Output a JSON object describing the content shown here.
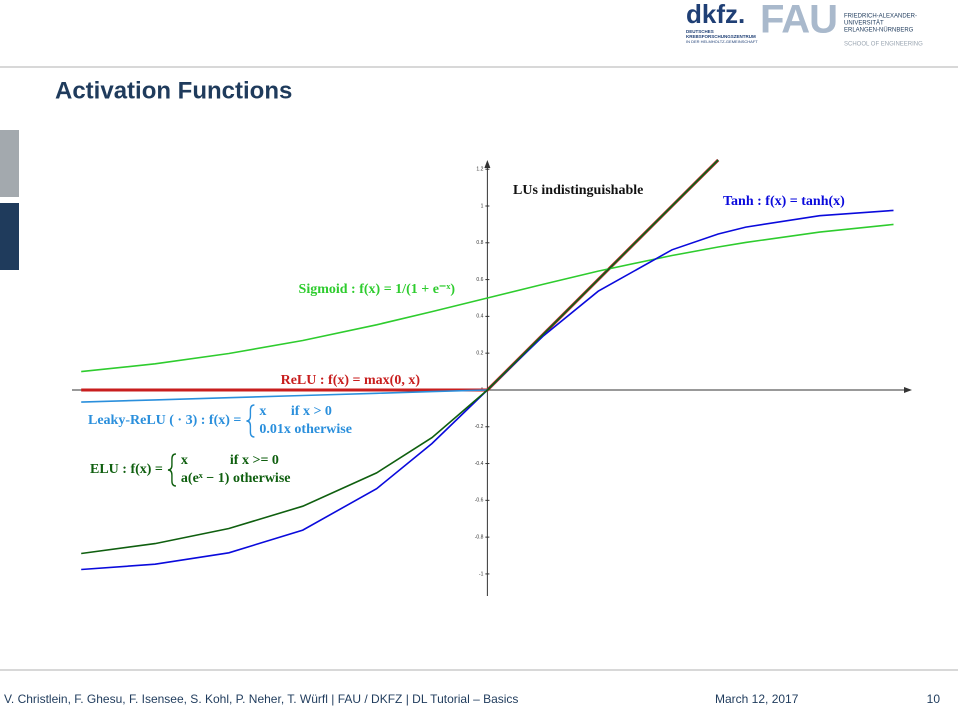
{
  "header": {
    "dkfz": "dkfz.",
    "dkfz_sub": [
      "DEUTSCHES",
      "KREBSFORSCHUNGSZENTRUM",
      "IN DER HELMHOLTZ-GEMEINSCHAFT"
    ],
    "fau": "FAU",
    "fau_sub": [
      "FRIEDRICH-ALEXANDER-",
      "UNIVERSITÄT",
      "ERLANGEN-NÜRNBERG"
    ],
    "school": "SCHOOL OF ENGINEERING"
  },
  "title": "Activation Functions",
  "footer": {
    "authors": "V. Christlein, F. Ghesu, F. Isensee, S. Kohl, P. Neher, T. Würfl   |   FAU / DKFZ   |   DL Tutorial – Basics",
    "date": "March 12, 2017",
    "page": "10"
  },
  "chart_data": {
    "type": "line",
    "x": [
      -2.2,
      -1.8,
      -1.4,
      -1.0,
      -0.6,
      -0.3,
      0,
      0.3,
      0.6,
      1.0,
      1.25,
      1.4,
      1.8,
      2.2
    ],
    "xlim": [
      -2.25,
      2.3
    ],
    "ylim": [
      -1.12,
      1.25
    ],
    "yticks": [
      -1,
      -0.8,
      -0.6,
      -0.4,
      -0.2,
      0,
      0.2,
      0.4,
      0.6,
      0.8,
      1,
      1.2
    ],
    "annotation": "LUs indistinguishable",
    "series": [
      {
        "name": "Sigmoid",
        "color": "#2ecc2e",
        "label": "Sigmoid :  f(x) = 1/(1 + e⁻ˣ)",
        "values": [
          0.1,
          0.142,
          0.198,
          0.269,
          0.354,
          0.426,
          0.5,
          0.574,
          0.646,
          0.731,
          0.777,
          0.802,
          0.858,
          0.9
        ]
      },
      {
        "name": "Tanh",
        "color": "#0a0adc",
        "label": "Tanh :  f(x) = tanh(x)",
        "values": [
          -0.976,
          -0.947,
          -0.885,
          -0.762,
          -0.537,
          -0.291,
          0,
          0.291,
          0.537,
          0.762,
          0.848,
          0.885,
          0.947,
          0.976
        ]
      },
      {
        "name": "ReLU",
        "color": "#c81e1e",
        "label": "ReLU :  f(x) = max(0, x)",
        "values": [
          0,
          0,
          0,
          0,
          0,
          0,
          0,
          0.3,
          0.6,
          1.0,
          1.25,
          null,
          null,
          null
        ]
      },
      {
        "name": "Leaky-ReLU",
        "color": "#2a8fdc",
        "label": "Leaky-ReLU ( · 3) :  f(x) =",
        "cases": [
          "x       if x > 0",
          "0.01x otherwise"
        ],
        "values": [
          -0.066,
          -0.054,
          -0.042,
          -0.03,
          -0.018,
          -0.009,
          0,
          0.3,
          0.6,
          1.0,
          1.25,
          null,
          null,
          null
        ]
      },
      {
        "name": "ELU",
        "color": "#0f5f0f",
        "label": "ELU :  f(x) =",
        "cases": [
          "x            if x >= 0",
          "a(eˣ − 1) otherwise"
        ],
        "values": [
          -0.889,
          -0.835,
          -0.753,
          -0.632,
          -0.451,
          -0.259,
          0,
          0.3,
          0.6,
          1.0,
          1.25,
          null,
          null,
          null
        ]
      }
    ]
  }
}
